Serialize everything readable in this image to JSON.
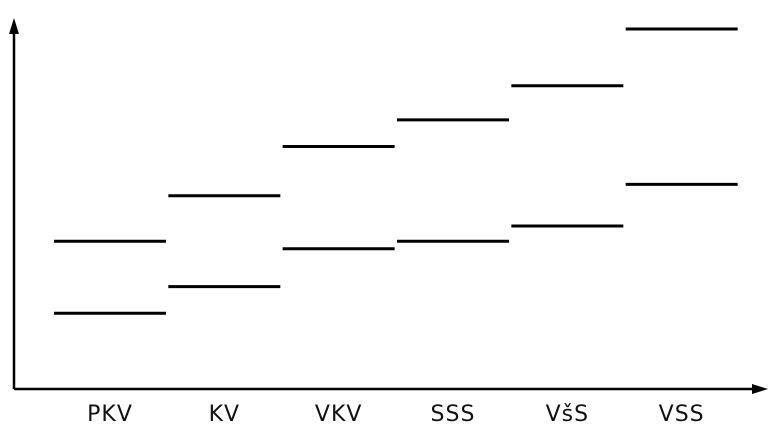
{
  "chart_data": {
    "type": "bar",
    "title": "",
    "xlabel": "",
    "ylabel": "",
    "categories": [
      "PKV",
      "KV",
      "VKV",
      "SSS",
      "VšS",
      "VSS"
    ],
    "ylim": [
      0,
      100
    ],
    "grid": false,
    "legend": "none",
    "series": [
      {
        "values": [
          20,
          27,
          37,
          39,
          43,
          54
        ]
      },
      {
        "values": [
          39,
          51,
          64,
          71,
          80,
          95
        ]
      }
    ]
  },
  "colors": {
    "background": "#ffffff",
    "axis": "#000000",
    "mark": "#000000"
  }
}
